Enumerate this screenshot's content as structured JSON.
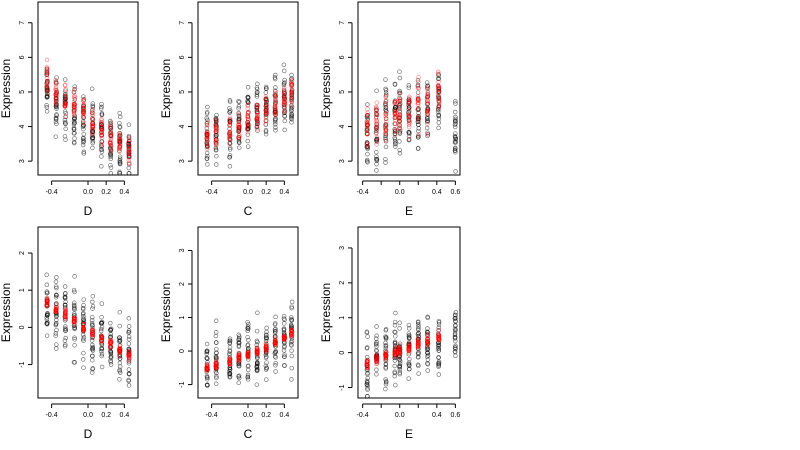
{
  "chart_data": [
    {
      "type": "scatter",
      "xlabel": "D",
      "ylabel": "Expression",
      "xlim": [
        -0.55,
        0.55
      ],
      "ylim": [
        2.6,
        7.6
      ],
      "xticks": [
        -0.4,
        0.0,
        0.2,
        0.4
      ],
      "xtick_labels": [
        "-0.4",
        "0.0",
        "0.2",
        "0.4"
      ],
      "yticks": [
        3,
        4,
        5,
        6,
        7
      ],
      "ytick_labels": [
        "3",
        "4",
        "5",
        "6",
        "7"
      ],
      "series": [
        {
          "color": "#000000",
          "x_levels": [
            -0.45,
            -0.35,
            -0.25,
            -0.15,
            -0.05,
            0.05,
            0.15,
            0.25,
            0.35,
            0.45
          ],
          "y_center": [
            5.0,
            4.7,
            4.5,
            4.3,
            4.1,
            3.9,
            3.8,
            3.6,
            3.4,
            3.3
          ],
          "spread": 0.75
        },
        {
          "color": "#ff0000",
          "x_levels": [
            -0.45,
            -0.35,
            -0.25,
            -0.15,
            -0.05,
            0.05,
            0.15,
            0.25,
            0.35,
            0.45
          ],
          "y_center": [
            5.4,
            5.0,
            4.8,
            4.6,
            4.4,
            4.1,
            3.9,
            3.7,
            3.5,
            3.3
          ],
          "spread": 0.35
        }
      ]
    },
    {
      "type": "scatter",
      "xlabel": "C",
      "ylabel": "Expression",
      "xlim": [
        -0.55,
        0.55
      ],
      "ylim": [
        2.6,
        7.6
      ],
      "xticks": [
        -0.4,
        0.0,
        0.2,
        0.4
      ],
      "xtick_labels": [
        "-0.4",
        "0.0",
        "0.2",
        "0.4"
      ],
      "yticks": [
        3,
        4,
        5,
        6,
        7
      ],
      "ytick_labels": [
        "3",
        "4",
        "5",
        "6",
        "7"
      ],
      "series": [
        {
          "color": "#000000",
          "x_levels": [
            -0.45,
            -0.35,
            -0.2,
            -0.1,
            0.0,
            0.1,
            0.2,
            0.3,
            0.4,
            0.48
          ],
          "y_center": [
            3.7,
            3.8,
            3.9,
            4.0,
            4.2,
            4.3,
            4.4,
            4.5,
            4.7,
            4.8
          ],
          "spread": 0.75
        },
        {
          "color": "#ff0000",
          "x_levels": [
            -0.45,
            -0.35,
            -0.2,
            -0.1,
            0.0,
            0.1,
            0.2,
            0.3,
            0.4,
            0.48
          ],
          "y_center": [
            3.7,
            3.8,
            3.9,
            4.0,
            4.2,
            4.3,
            4.5,
            4.6,
            4.8,
            5.0
          ],
          "spread": 0.35
        }
      ]
    },
    {
      "type": "scatter",
      "xlabel": "E",
      "ylabel": "Expression",
      "xlim": [
        -0.45,
        0.65
      ],
      "ylim": [
        2.6,
        7.6
      ],
      "xticks": [
        -0.4,
        -0.2,
        0.0,
        0.2,
        0.4,
        0.6
      ],
      "xtick_labels": [
        "-0.4",
        "",
        "0.0",
        "",
        "0.4",
        "0.6"
      ],
      "yticks": [
        3,
        4,
        5,
        6,
        7
      ],
      "ytick_labels": [
        "3",
        "4",
        "5",
        "6",
        "7"
      ],
      "series": [
        {
          "color": "#000000",
          "x_levels": [
            -0.35,
            -0.25,
            -0.15,
            -0.05,
            0.0,
            0.1,
            0.2,
            0.3,
            0.42,
            0.6
          ],
          "y_center": [
            3.9,
            4.0,
            4.1,
            4.2,
            4.3,
            4.4,
            4.4,
            4.5,
            4.7,
            3.8
          ],
          "spread": 0.9
        },
        {
          "color": "#ff0000",
          "x_levels": [
            -0.35,
            -0.25,
            -0.15,
            -0.05,
            0.0,
            0.1,
            0.2,
            0.3,
            0.42
          ],
          "y_center": [
            4.0,
            4.1,
            4.2,
            4.3,
            4.4,
            4.5,
            4.6,
            4.7,
            4.9
          ],
          "spread": 0.6
        }
      ]
    },
    {
      "type": "scatter",
      "xlabel": "D",
      "ylabel": "Expression",
      "xlim": [
        -0.55,
        0.55
      ],
      "ylim": [
        -1.9,
        2.7
      ],
      "xticks": [
        -0.4,
        0.0,
        0.2,
        0.4
      ],
      "xtick_labels": [
        "-0.4",
        "0.0",
        "0.2",
        "0.4"
      ],
      "yticks": [
        -1,
        0,
        1,
        2
      ],
      "ytick_labels": [
        "-1",
        "0",
        "1",
        "2"
      ],
      "series": [
        {
          "color": "#000000",
          "x_levels": [
            -0.45,
            -0.35,
            -0.25,
            -0.15,
            -0.05,
            0.05,
            0.15,
            0.25,
            0.35,
            0.45
          ],
          "y_center": [
            0.7,
            0.5,
            0.3,
            0.1,
            0.0,
            -0.2,
            -0.3,
            -0.5,
            -0.6,
            -0.8
          ],
          "spread": 0.8
        },
        {
          "color": "#ff0000",
          "x_levels": [
            -0.45,
            -0.35,
            -0.25,
            -0.15,
            -0.05,
            0.05,
            0.15,
            0.25,
            0.35,
            0.45
          ],
          "y_center": [
            0.7,
            0.5,
            0.35,
            0.2,
            0.0,
            -0.15,
            -0.3,
            -0.45,
            -0.6,
            -0.75
          ],
          "spread": 0.1
        }
      ]
    },
    {
      "type": "scatter",
      "xlabel": "C",
      "ylabel": "Expression",
      "xlim": [
        -0.55,
        0.55
      ],
      "ylim": [
        -1.4,
        3.7
      ],
      "xticks": [
        -0.4,
        0.0,
        0.2,
        0.4
      ],
      "xtick_labels": [
        "-0.4",
        "0.0",
        "0.2",
        "0.4"
      ],
      "yticks": [
        -1,
        0,
        1,
        2,
        3
      ],
      "ytick_labels": [
        "-1",
        "0",
        "1",
        "2",
        "3"
      ],
      "series": [
        {
          "color": "#000000",
          "x_levels": [
            -0.45,
            -0.35,
            -0.2,
            -0.1,
            0.0,
            0.1,
            0.2,
            0.3,
            0.4,
            0.48
          ],
          "y_center": [
            -0.5,
            -0.4,
            -0.3,
            -0.2,
            -0.1,
            0.0,
            0.1,
            0.2,
            0.3,
            0.4
          ],
          "spread": 0.8
        },
        {
          "color": "#ff0000",
          "x_levels": [
            -0.45,
            -0.35,
            -0.2,
            -0.1,
            0.0,
            0.1,
            0.2,
            0.3,
            0.4,
            0.48
          ],
          "y_center": [
            -0.5,
            -0.4,
            -0.3,
            -0.2,
            -0.1,
            0.0,
            0.1,
            0.25,
            0.4,
            0.55
          ],
          "spread": 0.1
        }
      ]
    },
    {
      "type": "scatter",
      "xlabel": "E",
      "ylabel": "Expression",
      "xlim": [
        -0.45,
        0.65
      ],
      "ylim": [
        -1.3,
        3.6
      ],
      "xticks": [
        -0.4,
        -0.2,
        0.0,
        0.2,
        0.4,
        0.6
      ],
      "xtick_labels": [
        "-0.4",
        "",
        "0.0",
        "",
        "0.4",
        "0.6"
      ],
      "yticks": [
        -1,
        0,
        1,
        2,
        3
      ],
      "ytick_labels": [
        "-1",
        "0",
        "1",
        "2",
        "3"
      ],
      "series": [
        {
          "color": "#000000",
          "x_levels": [
            -0.35,
            -0.25,
            -0.15,
            -0.05,
            0.0,
            0.1,
            0.2,
            0.3,
            0.42,
            0.6
          ],
          "y_center": [
            -0.3,
            -0.2,
            -0.1,
            0.0,
            0.0,
            0.1,
            0.2,
            0.3,
            0.4,
            0.5
          ],
          "spread": 0.8
        },
        {
          "color": "#ff0000",
          "x_levels": [
            -0.35,
            -0.25,
            -0.15,
            -0.05,
            0.0,
            0.1,
            0.2,
            0.3,
            0.42
          ],
          "y_center": [
            -0.3,
            -0.2,
            -0.1,
            0.0,
            0.05,
            0.15,
            0.25,
            0.35,
            0.45
          ],
          "spread": 0.12
        }
      ]
    }
  ]
}
